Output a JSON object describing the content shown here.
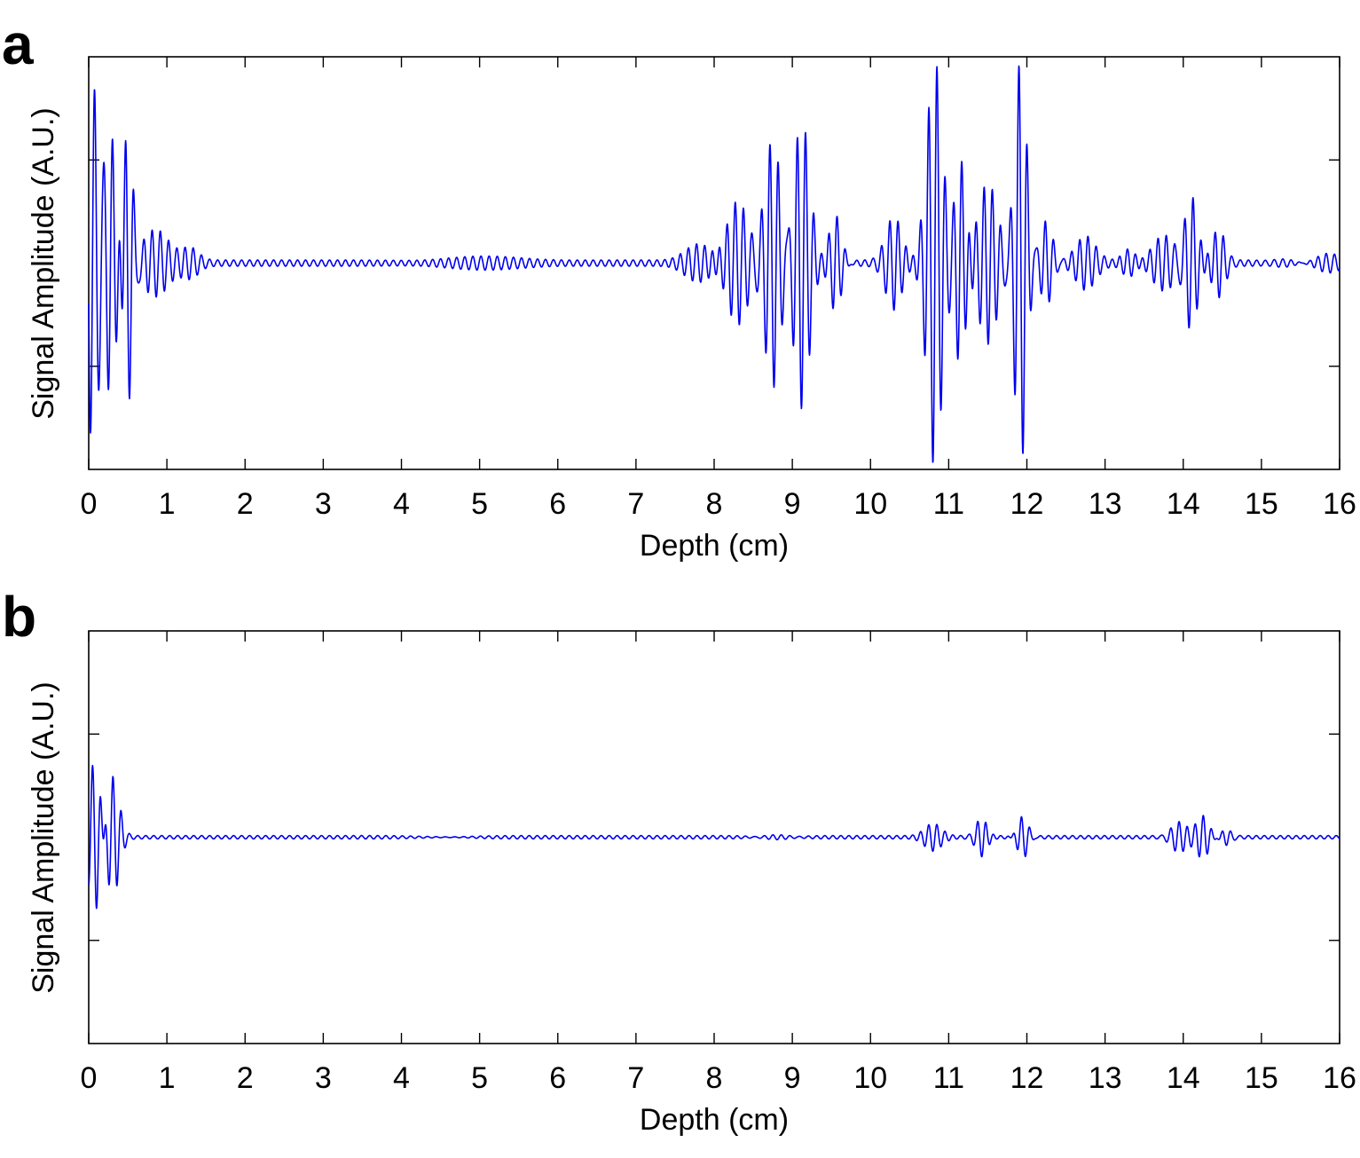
{
  "chart_data": [
    {
      "panel": "a",
      "type": "line",
      "xlabel": "Depth (cm)",
      "ylabel": "Signal Amplitude (A.U.)",
      "xlim": [
        0,
        16
      ],
      "ylim": [
        -1,
        1
      ],
      "xticks": [
        0,
        1,
        2,
        3,
        4,
        5,
        6,
        7,
        8,
        9,
        10,
        11,
        12,
        13,
        14,
        15,
        16
      ],
      "yticks_labeled": false,
      "grid": false,
      "line_color": "#0000ee",
      "series": [
        {
          "kind": "oscillating-signal",
          "carrier_cycles_per_cm": 9.5,
          "baseline_noise": 0.015,
          "echoes": [
            {
              "depth": 0.05,
              "width": 0.12,
              "amplitude": 0.88
            },
            {
              "depth": 0.28,
              "width": 0.12,
              "amplitude": 0.62
            },
            {
              "depth": 0.5,
              "width": 0.09,
              "amplitude": 0.72
            },
            {
              "depth": 0.85,
              "width": 0.25,
              "amplitude": 0.16
            },
            {
              "depth": 1.3,
              "width": 0.15,
              "amplitude": 0.06
            },
            {
              "depth": 5.0,
              "width": 0.7,
              "amplitude": 0.02
            },
            {
              "depth": 7.8,
              "width": 0.25,
              "amplitude": 0.08
            },
            {
              "depth": 8.3,
              "width": 0.2,
              "amplitude": 0.3
            },
            {
              "depth": 8.75,
              "width": 0.15,
              "amplitude": 0.6
            },
            {
              "depth": 9.12,
              "width": 0.15,
              "amplitude": 0.72
            },
            {
              "depth": 9.55,
              "width": 0.12,
              "amplitude": 0.25
            },
            {
              "depth": 10.3,
              "width": 0.15,
              "amplitude": 0.22
            },
            {
              "depth": 10.82,
              "width": 0.14,
              "amplitude": 0.98
            },
            {
              "depth": 11.15,
              "width": 0.1,
              "amplitude": 0.5
            },
            {
              "depth": 11.5,
              "width": 0.18,
              "amplitude": 0.38
            },
            {
              "depth": 11.92,
              "width": 0.11,
              "amplitude": 1.0
            },
            {
              "depth": 12.25,
              "width": 0.12,
              "amplitude": 0.22
            },
            {
              "depth": 12.75,
              "width": 0.18,
              "amplitude": 0.12
            },
            {
              "depth": 13.3,
              "width": 0.12,
              "amplitude": 0.06
            },
            {
              "depth": 13.75,
              "width": 0.22,
              "amplitude": 0.14
            },
            {
              "depth": 14.1,
              "width": 0.12,
              "amplitude": 0.32
            },
            {
              "depth": 14.45,
              "width": 0.12,
              "amplitude": 0.16
            },
            {
              "depth": 15.3,
              "width": 0.25,
              "amplitude": 0.03
            },
            {
              "depth": 15.85,
              "width": 0.22,
              "amplitude": 0.05
            }
          ]
        }
      ]
    },
    {
      "panel": "b",
      "type": "line",
      "xlabel": "Depth (cm)",
      "ylabel": "Signal Amplitude (A.U.)",
      "xlim": [
        0,
        16
      ],
      "ylim": [
        -1,
        1
      ],
      "xticks": [
        0,
        1,
        2,
        3,
        4,
        5,
        6,
        7,
        8,
        9,
        10,
        11,
        12,
        13,
        14,
        15,
        16
      ],
      "yticks_labeled": false,
      "grid": false,
      "line_color": "#0000ee",
      "series": [
        {
          "kind": "oscillating-signal",
          "carrier_cycles_per_cm": 9.5,
          "baseline_noise": 0.008,
          "echoes": [
            {
              "depth": 0.08,
              "width": 0.12,
              "amplitude": 0.38
            },
            {
              "depth": 0.3,
              "width": 0.12,
              "amplitude": 0.3
            },
            {
              "depth": 4.5,
              "width": 0.6,
              "amplitude": 0.01
            },
            {
              "depth": 8.8,
              "width": 0.3,
              "amplitude": 0.02
            },
            {
              "depth": 10.8,
              "width": 0.15,
              "amplitude": 0.06
            },
            {
              "depth": 11.42,
              "width": 0.1,
              "amplitude": 0.09
            },
            {
              "depth": 11.95,
              "width": 0.1,
              "amplitude": 0.11
            },
            {
              "depth": 13.95,
              "width": 0.15,
              "amplitude": 0.08
            },
            {
              "depth": 14.25,
              "width": 0.12,
              "amplitude": 0.11
            },
            {
              "depth": 14.55,
              "width": 0.1,
              "amplitude": 0.04
            }
          ]
        }
      ]
    }
  ]
}
